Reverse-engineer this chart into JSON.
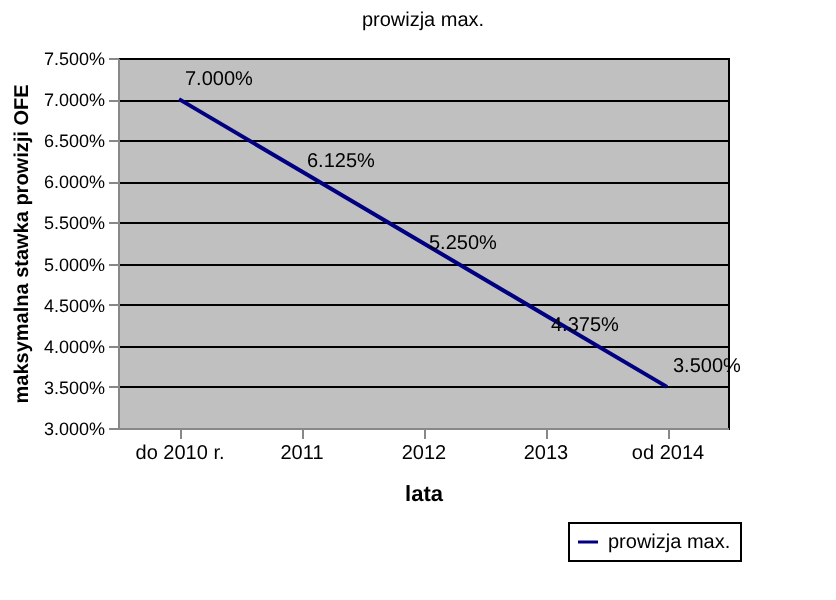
{
  "chart_data": {
    "type": "line",
    "title": "prowizja max.",
    "xlabel": "lata",
    "ylabel": "maksymalna stawka prowizji OFE",
    "categories": [
      "do 2010 r.",
      "2011",
      "2012",
      "2013",
      "od 2014"
    ],
    "series": [
      {
        "name": "prowizja max.",
        "color": "#000080",
        "values": [
          7.0,
          6.125,
          5.25,
          4.375,
          3.5
        ],
        "value_labels": [
          "7.000%",
          "6.125%",
          "5.250%",
          "4.375%",
          "3.500%"
        ]
      }
    ],
    "ylim": [
      3.0,
      7.5
    ],
    "yticks": [
      {
        "value": 3.0,
        "label": "3.000%"
      },
      {
        "value": 3.5,
        "label": "3.500%"
      },
      {
        "value": 4.0,
        "label": "4.000%"
      },
      {
        "value": 4.5,
        "label": "4.500%"
      },
      {
        "value": 5.0,
        "label": "5.000%"
      },
      {
        "value": 5.5,
        "label": "5.500%"
      },
      {
        "value": 6.0,
        "label": "6.000%"
      },
      {
        "value": 6.5,
        "label": "6.500%"
      },
      {
        "value": 7.0,
        "label": "7.000%"
      },
      {
        "value": 7.5,
        "label": "7.500%"
      }
    ],
    "grid": "y",
    "legend": "bottom right",
    "marker": "none",
    "line_style": "solid"
  }
}
